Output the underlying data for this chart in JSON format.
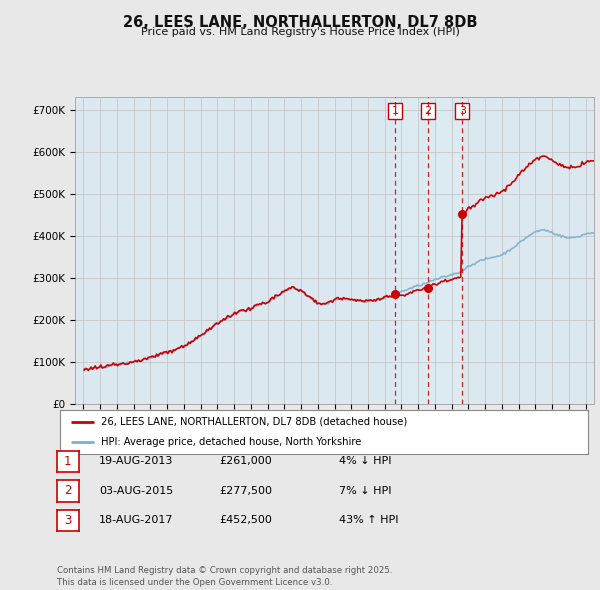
{
  "title": "26, LEES LANE, NORTHALLERTON, DL7 8DB",
  "subtitle": "Price paid vs. HM Land Registry's House Price Index (HPI)",
  "background_color": "#e8e8e8",
  "plot_bg_color": "#dce8f0",
  "ylabel": "",
  "ylim": [
    0,
    730000
  ],
  "yticks": [
    0,
    100000,
    200000,
    300000,
    400000,
    500000,
    600000,
    700000
  ],
  "ytick_labels": [
    "£0",
    "£100K",
    "£200K",
    "£300K",
    "£400K",
    "£500K",
    "£600K",
    "£700K"
  ],
  "xlim_start": 1994.5,
  "xlim_end": 2025.5,
  "transaction_dates": [
    2013.63,
    2015.59,
    2017.63
  ],
  "transaction_prices": [
    261000,
    277500,
    452500
  ],
  "transaction_labels": [
    "1",
    "2",
    "3"
  ],
  "vline_color": "#cc0000",
  "red_line_color": "#cc0000",
  "blue_line_color": "#7ab0d4",
  "legend_label_red": "26, LEES LANE, NORTHALLERTON, DL7 8DB (detached house)",
  "legend_label_blue": "HPI: Average price, detached house, North Yorkshire",
  "table_rows": [
    {
      "num": "1",
      "date": "19-AUG-2013",
      "price": "£261,000",
      "change": "4% ↓ HPI"
    },
    {
      "num": "2",
      "date": "03-AUG-2015",
      "price": "£277,500",
      "change": "7% ↓ HPI"
    },
    {
      "num": "3",
      "date": "18-AUG-2017",
      "price": "£452,500",
      "change": "43% ↑ HPI"
    }
  ],
  "footer": "Contains HM Land Registry data © Crown copyright and database right 2025.\nThis data is licensed under the Open Government Licence v3.0.",
  "shade_between_lines": true,
  "shade_color": "#ccdde8"
}
